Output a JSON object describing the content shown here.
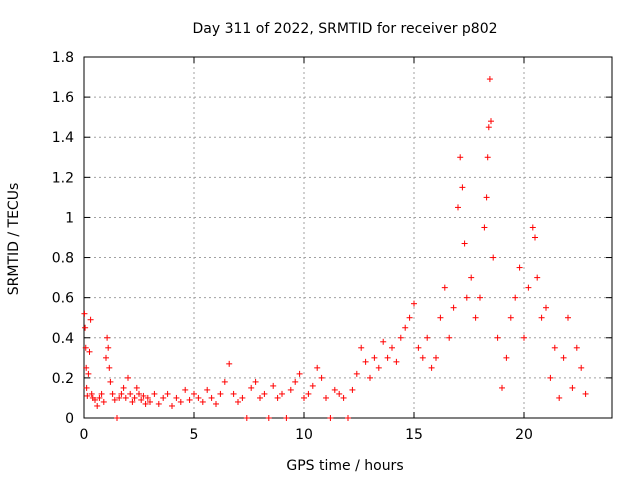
{
  "chart_data": {
    "type": "scatter",
    "title": "Day 311 of 2022, SRMTID for receiver p802",
    "xlabel": "GPS time / hours",
    "ylabel": "SRMTID / TECUs",
    "xlim": [
      0,
      24
    ],
    "ylim": [
      0,
      1.8
    ],
    "grid": true,
    "marker": "+",
    "color": "#ff0000",
    "xticks": [
      {
        "value": 0,
        "label": "0"
      },
      {
        "value": 5,
        "label": "5"
      },
      {
        "value": 10,
        "label": "10"
      },
      {
        "value": 15,
        "label": "15"
      },
      {
        "value": 20,
        "label": "20"
      }
    ],
    "yticks": [
      {
        "value": 0,
        "label": "0"
      },
      {
        "value": 0.2,
        "label": "0.2"
      },
      {
        "value": 0.4,
        "label": "0.4"
      },
      {
        "value": 0.6,
        "label": "0.6"
      },
      {
        "value": 0.8,
        "label": "0.8"
      },
      {
        "value": 1.0,
        "label": "1"
      },
      {
        "value": 1.2,
        "label": "1.2"
      },
      {
        "value": 1.4,
        "label": "1.4"
      },
      {
        "value": 1.6,
        "label": "1.6"
      },
      {
        "value": 1.8,
        "label": "1.8"
      }
    ],
    "series": [
      {
        "name": "SRMTID p802",
        "points": [
          [
            0.02,
            0.52
          ],
          [
            0.05,
            0.45
          ],
          [
            0.08,
            0.35
          ],
          [
            0.1,
            0.25
          ],
          [
            0.12,
            0.15
          ],
          [
            0.15,
            0.11
          ],
          [
            0.2,
            0.22
          ],
          [
            0.25,
            0.33
          ],
          [
            0.3,
            0.49
          ],
          [
            0.35,
            0.12
          ],
          [
            0.4,
            0.1
          ],
          [
            0.5,
            0.09
          ],
          [
            0.6,
            0.06
          ],
          [
            0.7,
            0.1
          ],
          [
            0.8,
            0.12
          ],
          [
            0.9,
            0.08
          ],
          [
            1.0,
            0.3
          ],
          [
            1.05,
            0.4
          ],
          [
            1.1,
            0.35
          ],
          [
            1.15,
            0.25
          ],
          [
            1.2,
            0.18
          ],
          [
            1.3,
            0.12
          ],
          [
            1.4,
            0.09
          ],
          [
            1.5,
            0.0
          ],
          [
            1.6,
            0.1
          ],
          [
            1.7,
            0.12
          ],
          [
            1.8,
            0.15
          ],
          [
            1.9,
            0.1
          ],
          [
            2.0,
            0.2
          ],
          [
            2.1,
            0.12
          ],
          [
            2.2,
            0.08
          ],
          [
            2.3,
            0.1
          ],
          [
            2.4,
            0.15
          ],
          [
            2.5,
            0.12
          ],
          [
            2.6,
            0.09
          ],
          [
            2.7,
            0.11
          ],
          [
            2.8,
            0.07
          ],
          [
            2.9,
            0.1
          ],
          [
            3.0,
            0.08
          ],
          [
            3.2,
            0.12
          ],
          [
            3.4,
            0.07
          ],
          [
            3.6,
            0.1
          ],
          [
            3.8,
            0.12
          ],
          [
            4.0,
            0.06
          ],
          [
            4.2,
            0.1
          ],
          [
            4.4,
            0.08
          ],
          [
            4.6,
            0.14
          ],
          [
            4.8,
            0.09
          ],
          [
            5.0,
            0.12
          ],
          [
            5.2,
            0.1
          ],
          [
            5.4,
            0.08
          ],
          [
            5.6,
            0.14
          ],
          [
            5.8,
            0.1
          ],
          [
            6.0,
            0.07
          ],
          [
            6.2,
            0.12
          ],
          [
            6.4,
            0.18
          ],
          [
            6.6,
            0.27
          ],
          [
            6.8,
            0.12
          ],
          [
            7.0,
            0.08
          ],
          [
            7.2,
            0.1
          ],
          [
            7.4,
            0.0
          ],
          [
            7.6,
            0.15
          ],
          [
            7.8,
            0.18
          ],
          [
            8.0,
            0.1
          ],
          [
            8.2,
            0.12
          ],
          [
            8.4,
            0.0
          ],
          [
            8.6,
            0.16
          ],
          [
            8.8,
            0.1
          ],
          [
            9.0,
            0.12
          ],
          [
            9.2,
            0.0
          ],
          [
            9.4,
            0.14
          ],
          [
            9.6,
            0.18
          ],
          [
            9.8,
            0.22
          ],
          [
            10.0,
            0.1
          ],
          [
            10.2,
            0.12
          ],
          [
            10.4,
            0.16
          ],
          [
            10.6,
            0.25
          ],
          [
            10.8,
            0.2
          ],
          [
            11.0,
            0.1
          ],
          [
            11.2,
            0.0
          ],
          [
            11.4,
            0.14
          ],
          [
            11.6,
            0.12
          ],
          [
            11.8,
            0.1
          ],
          [
            12.0,
            0.0
          ],
          [
            12.2,
            0.14
          ],
          [
            12.4,
            0.22
          ],
          [
            12.6,
            0.35
          ],
          [
            12.8,
            0.28
          ],
          [
            13.0,
            0.2
          ],
          [
            13.2,
            0.3
          ],
          [
            13.4,
            0.25
          ],
          [
            13.6,
            0.38
          ],
          [
            13.8,
            0.3
          ],
          [
            14.0,
            0.35
          ],
          [
            14.2,
            0.28
          ],
          [
            14.4,
            0.4
          ],
          [
            14.6,
            0.45
          ],
          [
            14.8,
            0.5
          ],
          [
            15.0,
            0.57
          ],
          [
            15.2,
            0.35
          ],
          [
            15.4,
            0.3
          ],
          [
            15.6,
            0.4
          ],
          [
            15.8,
            0.25
          ],
          [
            16.0,
            0.3
          ],
          [
            16.2,
            0.5
          ],
          [
            16.4,
            0.65
          ],
          [
            16.6,
            0.4
          ],
          [
            16.8,
            0.55
          ],
          [
            17.0,
            1.05
          ],
          [
            17.1,
            1.3
          ],
          [
            17.2,
            1.15
          ],
          [
            17.3,
            0.87
          ],
          [
            17.4,
            0.6
          ],
          [
            17.6,
            0.7
          ],
          [
            17.8,
            0.5
          ],
          [
            18.0,
            0.6
          ],
          [
            18.2,
            0.95
          ],
          [
            18.3,
            1.1
          ],
          [
            18.35,
            1.3
          ],
          [
            18.4,
            1.45
          ],
          [
            18.45,
            1.69
          ],
          [
            18.5,
            1.48
          ],
          [
            18.6,
            0.8
          ],
          [
            18.8,
            0.4
          ],
          [
            19.0,
            0.15
          ],
          [
            19.2,
            0.3
          ],
          [
            19.4,
            0.5
          ],
          [
            19.6,
            0.6
          ],
          [
            19.8,
            0.75
          ],
          [
            20.0,
            0.4
          ],
          [
            20.2,
            0.65
          ],
          [
            20.4,
            0.95
          ],
          [
            20.5,
            0.9
          ],
          [
            20.6,
            0.7
          ],
          [
            20.8,
            0.5
          ],
          [
            21.0,
            0.55
          ],
          [
            21.2,
            0.2
          ],
          [
            21.4,
            0.35
          ],
          [
            21.6,
            0.1
          ],
          [
            21.8,
            0.3
          ],
          [
            22.0,
            0.5
          ],
          [
            22.2,
            0.15
          ],
          [
            22.4,
            0.35
          ],
          [
            22.6,
            0.25
          ],
          [
            22.8,
            0.12
          ]
        ]
      }
    ]
  }
}
